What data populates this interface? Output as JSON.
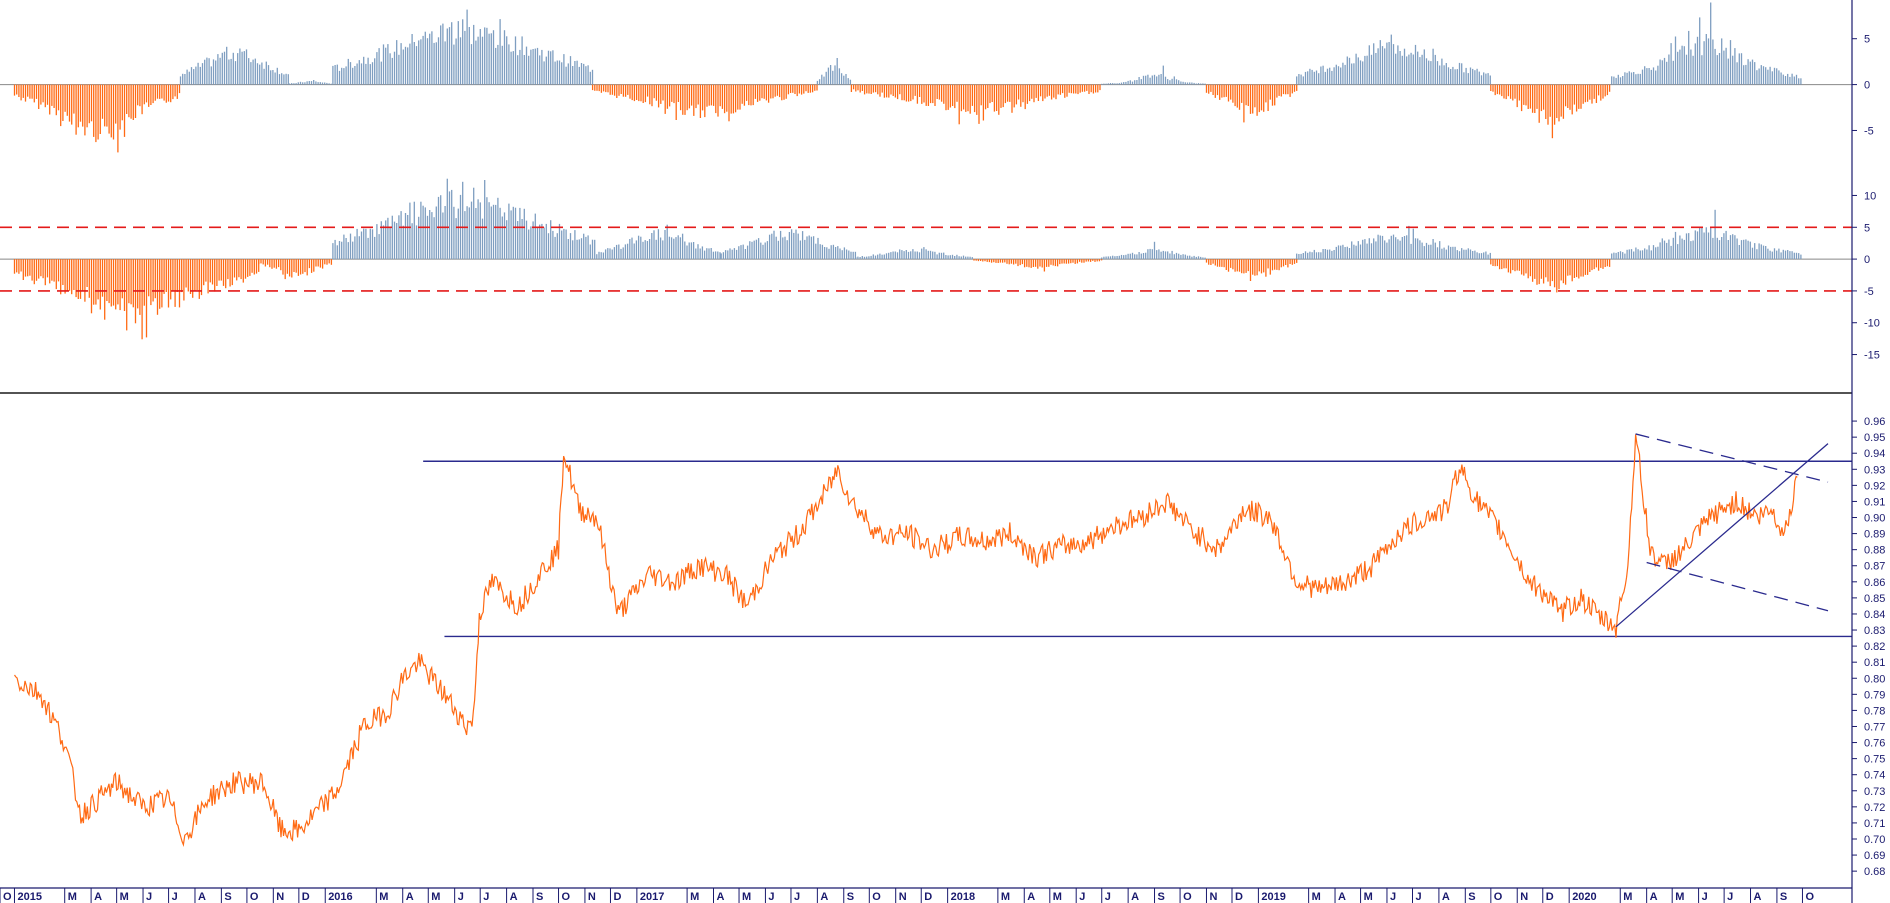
{
  "colors": {
    "positive": "#7e9ec0",
    "negative": "#ff6a14",
    "price": "#ff6a14",
    "axis": "#1a1a6e",
    "guide": "#e41a1a",
    "trend": "#2a2a8e",
    "background": "#ffffff"
  },
  "chart_data": [
    {
      "type": "bar",
      "panel": "oscillator-1",
      "ylim": [
        -8,
        9
      ],
      "ytick_labels": [
        "5",
        "0",
        "-5"
      ],
      "ytick_values": [
        5,
        0,
        -5
      ],
      "segments": [
        {
          "from": "2015-01-01",
          "to": "2015-07-15",
          "level": -3.5,
          "peak": -8.0
        },
        {
          "from": "2015-07-15",
          "to": "2015-11-20",
          "level": 3.0,
          "peak": 4.5
        },
        {
          "from": "2015-11-20",
          "to": "2016-01-10",
          "level": 0.3,
          "peak": 0.5
        },
        {
          "from": "2016-01-10",
          "to": "2016-11-10",
          "level": 5.0,
          "peak": 7.5
        },
        {
          "from": "2016-11-10",
          "to": "2017-08-01",
          "level": -2.2,
          "peak": -4.5
        },
        {
          "from": "2017-08-01",
          "to": "2017-09-10",
          "level": 1.5,
          "peak": 2.8
        },
        {
          "from": "2017-09-10",
          "to": "2018-07-01",
          "level": -2.0,
          "peak": -4.0
        },
        {
          "from": "2018-07-01",
          "to": "2018-11-01",
          "level": 0.3,
          "peak": 2.3
        },
        {
          "from": "2018-11-01",
          "to": "2019-02-15",
          "level": -2.3,
          "peak": -4.0
        },
        {
          "from": "2019-02-15",
          "to": "2019-10-01",
          "level": 3.0,
          "peak": 6.0
        },
        {
          "from": "2019-10-01",
          "to": "2020-02-20",
          "level": -2.8,
          "peak": -5.5
        },
        {
          "from": "2020-02-20",
          "to": "2020-09-30",
          "level": 2.5,
          "peak": 7.8
        }
      ]
    },
    {
      "type": "bar",
      "panel": "oscillator-2",
      "ylim": [
        -19,
        14
      ],
      "ytick_labels": [
        "10",
        "5",
        "0",
        "-5",
        "-10",
        "-15"
      ],
      "ytick_values": [
        10,
        5,
        0,
        -5,
        -10,
        -15
      ],
      "guide_lines": [
        5,
        -5
      ],
      "segments": [
        {
          "from": "2015-01-01",
          "to": "2015-10-15",
          "level": -6.5,
          "peak": -11.0
        },
        {
          "from": "2015-10-15",
          "to": "2016-01-10",
          "level": -2.0,
          "peak": -3.5
        },
        {
          "from": "2016-01-10",
          "to": "2016-11-15",
          "level": 7.5,
          "peak": 11.5
        },
        {
          "from": "2016-11-15",
          "to": "2017-04-10",
          "level": 3.0,
          "peak": 5.5
        },
        {
          "from": "2017-04-10",
          "to": "2017-09-15",
          "level": 3.0,
          "peak": 6.0
        },
        {
          "from": "2017-09-15",
          "to": "2018-02-01",
          "level": 1.0,
          "peak": 2.0
        },
        {
          "from": "2018-02-01",
          "to": "2018-07-01",
          "level": -0.8,
          "peak": -2.0
        },
        {
          "from": "2018-07-01",
          "to": "2018-11-01",
          "level": 0.8,
          "peak": 2.5
        },
        {
          "from": "2018-11-01",
          "to": "2019-02-15",
          "level": -2.0,
          "peak": -3.5
        },
        {
          "from": "2019-02-15",
          "to": "2019-10-01",
          "level": 2.5,
          "peak": 5.0
        },
        {
          "from": "2019-10-01",
          "to": "2020-02-20",
          "level": -3.0,
          "peak": -5.0
        },
        {
          "from": "2020-02-20",
          "to": "2020-09-30",
          "level": 2.5,
          "peak": 7.0
        }
      ]
    },
    {
      "type": "line",
      "panel": "price",
      "ylim": [
        0.672,
        0.97
      ],
      "ytick_labels": [
        "0.96",
        "0.95",
        "0.94",
        "0.93",
        "0.92",
        "0.91",
        "0.90",
        "0.89",
        "0.88",
        "0.87",
        "0.86",
        "0.85",
        "0.84",
        "0.83",
        "0.82",
        "0.81",
        "0.80",
        "0.79",
        "0.78",
        "0.77",
        "0.76",
        "0.75",
        "0.74",
        "0.73",
        "0.72",
        "0.71",
        "0.70",
        "0.69",
        "0.68"
      ],
      "ytick_values": [
        0.96,
        0.95,
        0.94,
        0.93,
        0.92,
        0.91,
        0.9,
        0.89,
        0.88,
        0.87,
        0.86,
        0.85,
        0.84,
        0.83,
        0.82,
        0.81,
        0.8,
        0.79,
        0.78,
        0.77,
        0.76,
        0.75,
        0.74,
        0.73,
        0.72,
        0.71,
        0.7,
        0.69,
        0.68
      ],
      "series": [
        {
          "x": [
            "2015-01-01",
            "2015-02-01",
            "2015-03-01",
            "2015-03-20",
            "2015-05-01",
            "2015-06-01",
            "2015-07-01",
            "2015-07-20",
            "2015-08-15",
            "2015-09-15",
            "2015-10-20",
            "2015-11-10",
            "2015-12-01",
            "2016-01-15",
            "2016-02-15",
            "2016-03-15",
            "2016-04-01",
            "2016-04-20",
            "2016-05-20",
            "2016-06-15",
            "2016-06-23",
            "2016-06-30",
            "2016-07-15",
            "2016-08-15",
            "2016-09-15",
            "2016-10-01",
            "2016-10-07",
            "2016-10-25",
            "2016-11-15",
            "2016-12-10",
            "2017-01-15",
            "2017-02-15",
            "2017-03-15",
            "2017-04-15",
            "2017-05-10",
            "2017-06-10",
            "2017-07-10",
            "2017-08-10",
            "2017-08-25",
            "2017-09-10",
            "2017-10-15",
            "2017-11-15",
            "2017-12-15",
            "2018-01-15",
            "2018-02-15",
            "2018-03-15",
            "2018-04-15",
            "2018-05-15",
            "2018-06-15",
            "2018-07-15",
            "2018-08-15",
            "2018-09-15",
            "2018-10-15",
            "2018-11-15",
            "2018-12-15",
            "2019-01-15",
            "2019-02-15",
            "2019-03-15",
            "2019-04-15",
            "2019-05-15",
            "2019-06-15",
            "2019-07-15",
            "2019-08-10",
            "2019-08-25",
            "2019-09-15",
            "2019-10-15",
            "2019-11-15",
            "2019-12-10",
            "2019-12-20",
            "2020-01-15",
            "2020-02-05",
            "2020-02-25",
            "2020-03-10",
            "2020-03-19",
            "2020-04-05",
            "2020-04-20",
            "2020-05-15",
            "2020-06-15",
            "2020-07-15",
            "2020-08-10",
            "2020-08-25",
            "2020-09-10",
            "2020-09-25"
          ],
          "y": [
            0.8,
            0.79,
            0.76,
            0.715,
            0.735,
            0.72,
            0.725,
            0.7,
            0.725,
            0.735,
            0.735,
            0.705,
            0.705,
            0.73,
            0.77,
            0.78,
            0.8,
            0.81,
            0.79,
            0.77,
            0.775,
            0.84,
            0.86,
            0.845,
            0.87,
            0.88,
            0.942,
            0.905,
            0.9,
            0.84,
            0.865,
            0.86,
            0.87,
            0.865,
            0.845,
            0.875,
            0.89,
            0.915,
            0.93,
            0.91,
            0.888,
            0.89,
            0.88,
            0.888,
            0.885,
            0.89,
            0.876,
            0.882,
            0.885,
            0.895,
            0.9,
            0.91,
            0.892,
            0.88,
            0.905,
            0.9,
            0.86,
            0.855,
            0.86,
            0.87,
            0.89,
            0.9,
            0.905,
            0.932,
            0.91,
            0.89,
            0.86,
            0.85,
            0.84,
            0.85,
            0.838,
            0.832,
            0.87,
            0.952,
            0.88,
            0.87,
            0.88,
            0.9,
            0.91,
            0.9,
            0.905,
            0.89,
            0.925
          ]
        }
      ],
      "support_level": 0.826,
      "resistance_level": 0.935,
      "trendlines": [
        {
          "style": "solid",
          "from": {
            "x": "2020-02-25",
            "y": 0.832
          },
          "to": {
            "x": "2020-10-31",
            "y": 0.946
          }
        },
        {
          "style": "dashed",
          "from": {
            "x": "2020-03-19",
            "y": 0.952
          },
          "to": {
            "x": "2020-10-31",
            "y": 0.922
          }
        },
        {
          "style": "dashed",
          "from": {
            "x": "2020-04-01",
            "y": 0.872
          },
          "to": {
            "x": "2020-10-31",
            "y": 0.842
          }
        }
      ]
    }
  ],
  "x_axis": {
    "labels": [
      "O",
      "2015",
      "M",
      "A",
      "M",
      "J",
      "J",
      "A",
      "S",
      "O",
      "N",
      "D",
      "2016",
      "M",
      "A",
      "M",
      "J",
      "J",
      "A",
      "S",
      "O",
      "N",
      "D",
      "2017",
      "M",
      "A",
      "M",
      "J",
      "J",
      "A",
      "S",
      "O",
      "N",
      "D",
      "2018",
      "M",
      "A",
      "M",
      "J",
      "J",
      "A",
      "S",
      "O",
      "N",
      "D",
      "2019",
      "M",
      "A",
      "M",
      "J",
      "J",
      "A",
      "S",
      "O",
      "N",
      "D",
      "2020",
      "M",
      "A",
      "M",
      "J",
      "J",
      "A",
      "S",
      "O"
    ],
    "label_dates": [
      "2014-12-01",
      "2015-01-01",
      "2015-03-01",
      "2015-04-01",
      "2015-05-01",
      "2015-06-01",
      "2015-07-01",
      "2015-08-01",
      "2015-09-01",
      "2015-10-01",
      "2015-11-01",
      "2015-12-01",
      "2016-01-01",
      "2016-03-01",
      "2016-04-01",
      "2016-05-01",
      "2016-06-01",
      "2016-07-01",
      "2016-08-01",
      "2016-09-01",
      "2016-10-01",
      "2016-11-01",
      "2016-12-01",
      "2017-01-01",
      "2017-03-01",
      "2017-04-01",
      "2017-05-01",
      "2017-06-01",
      "2017-07-01",
      "2017-08-01",
      "2017-09-01",
      "2017-10-01",
      "2017-11-01",
      "2017-12-01",
      "2018-01-01",
      "2018-03-01",
      "2018-04-01",
      "2018-05-01",
      "2018-06-01",
      "2018-07-01",
      "2018-08-01",
      "2018-09-01",
      "2018-10-01",
      "2018-11-01",
      "2018-12-01",
      "2019-01-01",
      "2019-03-01",
      "2019-04-01",
      "2019-05-01",
      "2019-06-01",
      "2019-07-01",
      "2019-08-01",
      "2019-09-01",
      "2019-10-01",
      "2019-11-01",
      "2019-12-01",
      "2020-01-01",
      "2020-03-01",
      "2020-04-01",
      "2020-05-01",
      "2020-06-01",
      "2020-07-01",
      "2020-08-01",
      "2020-09-01",
      "2020-10-01"
    ]
  }
}
